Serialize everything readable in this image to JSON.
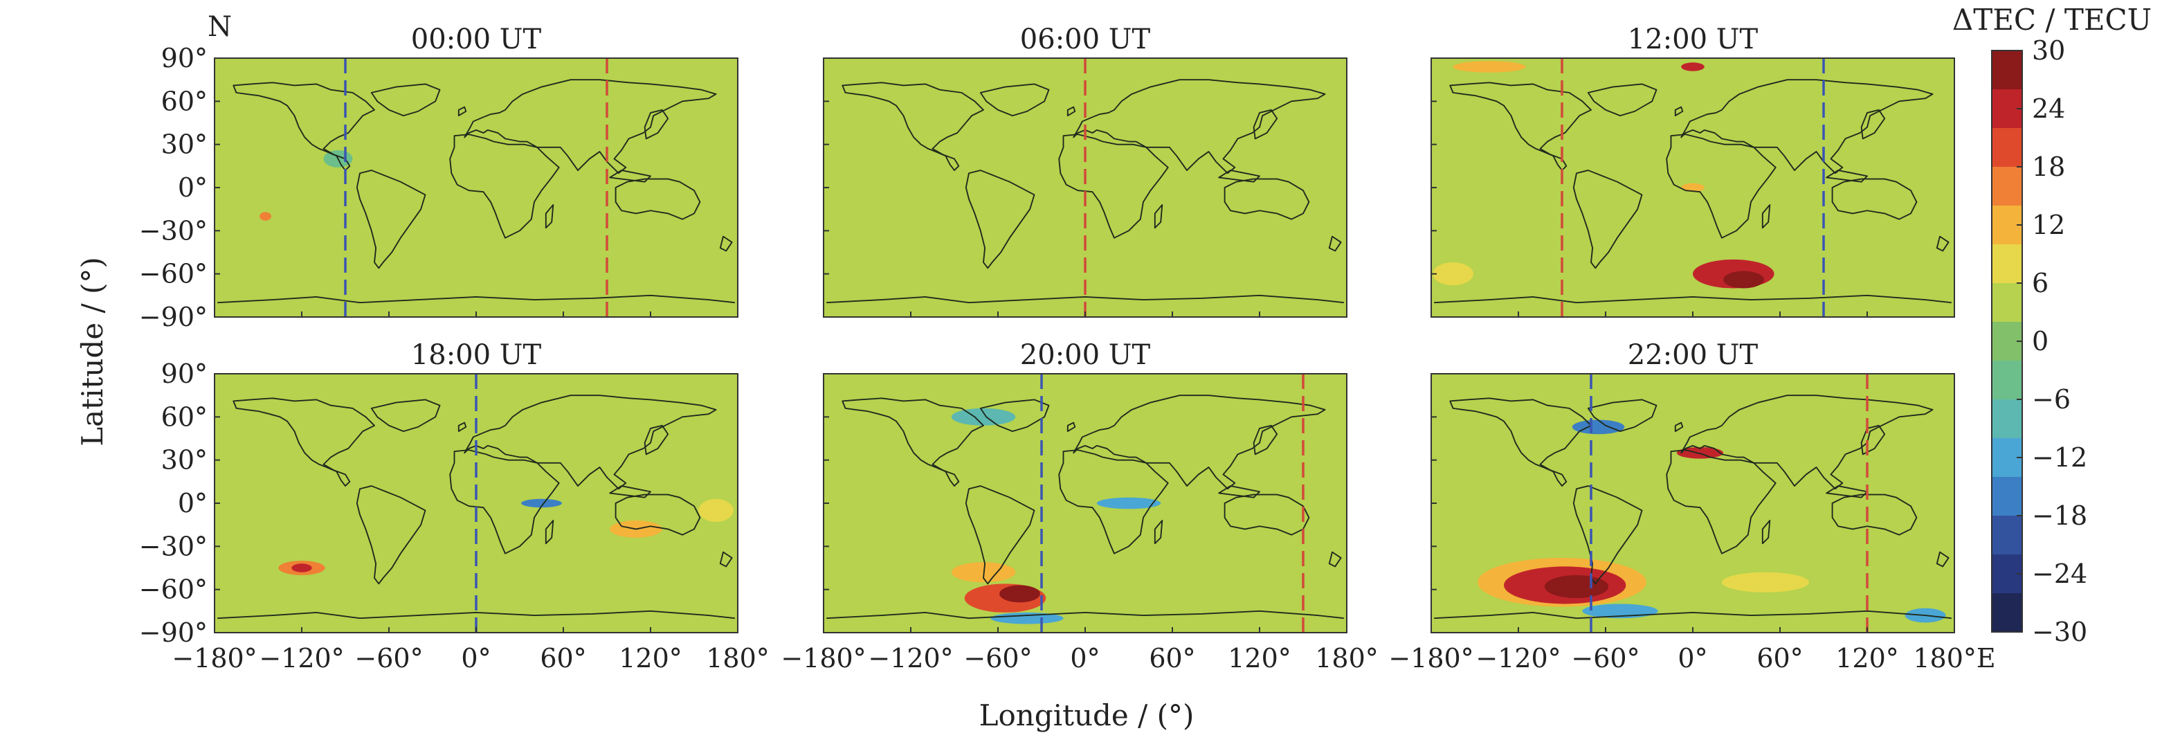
{
  "chart_data": {
    "type": "heatmap",
    "hemisphere_label": "N",
    "xlabel": "Longitude / (°)",
    "ylabel": "Latitude / (°)",
    "xlim": [
      -180,
      180
    ],
    "ylim": [
      -90,
      90
    ],
    "x_ticks": [
      -180,
      -120,
      -60,
      0,
      60,
      120,
      180
    ],
    "y_ticks": [
      90,
      60,
      30,
      0,
      -30,
      -60,
      -90
    ],
    "x_tick_labels_left": [
      "−180°",
      "−120°",
      "−60°",
      "0°",
      "60°",
      "120°",
      "180°"
    ],
    "x_tick_labels_right": [
      "−180°",
      "−120°",
      "−60°",
      "0°",
      "60°",
      "120°",
      "180°E"
    ],
    "y_tick_labels": [
      "90°",
      "60°",
      "30°",
      "0°",
      "−30°",
      "−60°",
      "−90°"
    ],
    "colorbar": {
      "title": "ΔTEC / TECU",
      "range": [
        -30,
        30
      ],
      "ticks": [
        30,
        24,
        18,
        12,
        6,
        0,
        -6,
        -12,
        -18,
        -24,
        -30
      ],
      "tick_labels": [
        "30",
        "24",
        "18",
        "12",
        "6",
        "0",
        "−6",
        "−12",
        "−18",
        "−24",
        "−30"
      ],
      "colors": [
        "#8b1a1a",
        "#c0242b",
        "#e04a2c",
        "#ef8036",
        "#f4b33a",
        "#e6d84a",
        "#b6d24e",
        "#82c06a",
        "#6cbf8a",
        "#5cb8b0",
        "#4aa6d4",
        "#3c7fc4",
        "#34539e",
        "#283980",
        "#1f2755"
      ]
    },
    "background_value": 3,
    "panels": [
      {
        "title": "00:00 UT",
        "dashed_lines": [
          {
            "lon": -90,
            "color": "#3a55b4"
          },
          {
            "lon": 90,
            "color": "#d24a3a"
          }
        ],
        "anomalies": [
          {
            "lon": -145,
            "lat": -20,
            "rx": 4,
            "ry": 3,
            "value": 18
          },
          {
            "lon": -95,
            "lat": 20,
            "rx": 10,
            "ry": 6,
            "value": -3
          }
        ]
      },
      {
        "title": "06:00 UT",
        "dashed_lines": [
          {
            "lon": 0,
            "color": "#d24a3a"
          }
        ],
        "anomalies": []
      },
      {
        "title": "12:00 UT",
        "dashed_lines": [
          {
            "lon": -90,
            "color": "#d24a3a"
          },
          {
            "lon": 90,
            "color": "#3a55b4"
          }
        ],
        "anomalies": [
          {
            "lon": -140,
            "lat": 84,
            "rx": 25,
            "ry": 4,
            "value": 14
          },
          {
            "lon": 0,
            "lat": 84,
            "rx": 8,
            "ry": 3,
            "value": 24
          },
          {
            "lon": 28,
            "lat": -60,
            "rx": 28,
            "ry": 10,
            "value": 26
          },
          {
            "lon": 35,
            "lat": -64,
            "rx": 14,
            "ry": 6,
            "value": 30
          },
          {
            "lon": -165,
            "lat": -60,
            "rx": 14,
            "ry": 8,
            "value": 10
          },
          {
            "lon": 0,
            "lat": 0,
            "rx": 8,
            "ry": 3,
            "value": 12
          }
        ]
      },
      {
        "title": "18:00 UT",
        "dashed_lines": [
          {
            "lon": 0,
            "color": "#3a55b4"
          }
        ],
        "anomalies": [
          {
            "lon": -120,
            "lat": -45,
            "rx": 16,
            "ry": 5,
            "value": 16
          },
          {
            "lon": -120,
            "lat": -45,
            "rx": 7,
            "ry": 3,
            "value": 24
          },
          {
            "lon": 110,
            "lat": -18,
            "rx": 18,
            "ry": 6,
            "value": 14
          },
          {
            "lon": 165,
            "lat": -5,
            "rx": 12,
            "ry": 8,
            "value": 10
          },
          {
            "lon": 45,
            "lat": 0,
            "rx": 14,
            "ry": 3,
            "value": -14
          }
        ]
      },
      {
        "title": "20:00 UT",
        "dashed_lines": [
          {
            "lon": -30,
            "color": "#3a55b4"
          },
          {
            "lon": 150,
            "color": "#d24a3a"
          }
        ],
        "anomalies": [
          {
            "lon": -55,
            "lat": -66,
            "rx": 28,
            "ry": 10,
            "value": 22
          },
          {
            "lon": -45,
            "lat": -63,
            "rx": 14,
            "ry": 6,
            "value": 30
          },
          {
            "lon": -70,
            "lat": -48,
            "rx": 22,
            "ry": 7,
            "value": 12
          },
          {
            "lon": -40,
            "lat": -80,
            "rx": 25,
            "ry": 4,
            "value": -10
          },
          {
            "lon": 30,
            "lat": 0,
            "rx": 22,
            "ry": 4,
            "value": -12
          },
          {
            "lon": -70,
            "lat": 60,
            "rx": 22,
            "ry": 6,
            "value": -8
          }
        ]
      },
      {
        "title": "22:00 UT",
        "dashed_lines": [
          {
            "lon": -70,
            "color": "#3a55b4"
          },
          {
            "lon": 120,
            "color": "#d24a3a"
          }
        ],
        "anomalies": [
          {
            "lon": -90,
            "lat": -55,
            "rx": 58,
            "ry": 17,
            "value": 14
          },
          {
            "lon": -88,
            "lat": -57,
            "rx": 42,
            "ry": 13,
            "value": 26
          },
          {
            "lon": -80,
            "lat": -58,
            "rx": 22,
            "ry": 8,
            "value": 30
          },
          {
            "lon": -50,
            "lat": -75,
            "rx": 26,
            "ry": 5,
            "value": -12
          },
          {
            "lon": -65,
            "lat": 53,
            "rx": 18,
            "ry": 5,
            "value": -14
          },
          {
            "lon": 5,
            "lat": 35,
            "rx": 16,
            "ry": 4,
            "value": 26
          },
          {
            "lon": 160,
            "lat": -78,
            "rx": 14,
            "ry": 5,
            "value": -10
          },
          {
            "lon": 50,
            "lat": -55,
            "rx": 30,
            "ry": 7,
            "value": 10
          }
        ]
      }
    ]
  }
}
